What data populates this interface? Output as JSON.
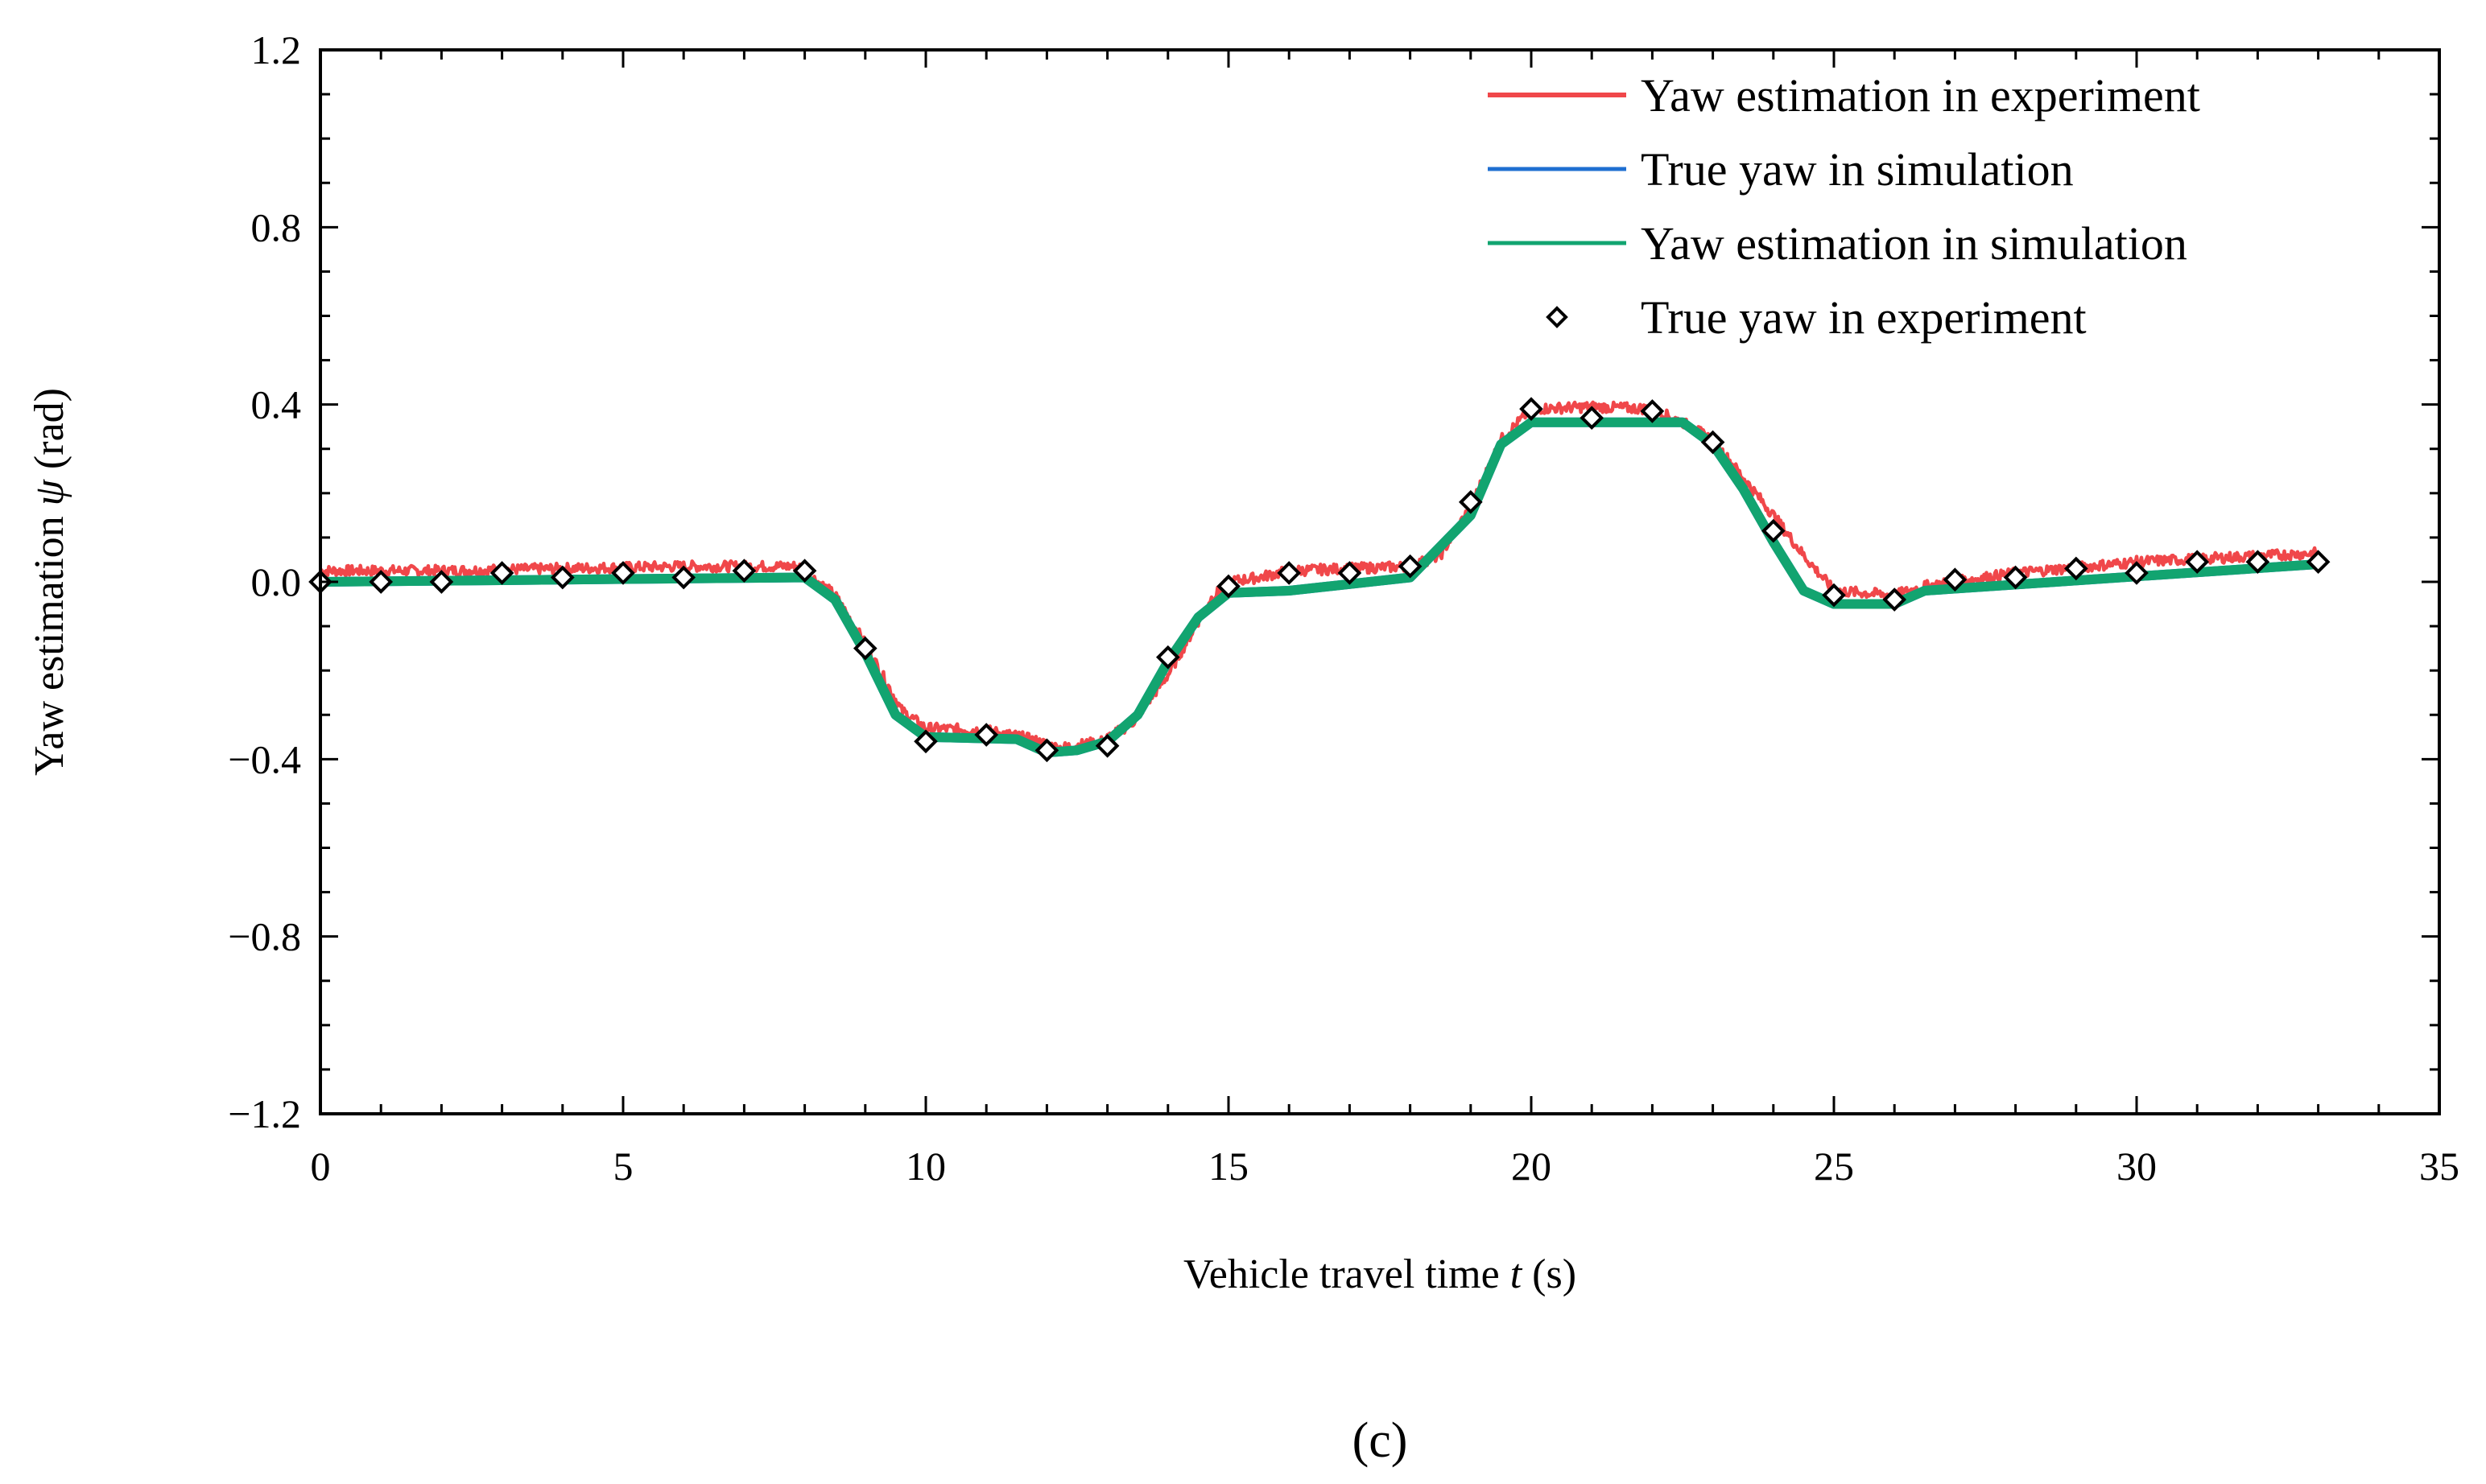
{
  "chart_data": {
    "type": "line",
    "xlabel": {
      "text": "Vehicle travel time ",
      "var": "t",
      "unit": " (s)"
    },
    "ylabel": {
      "text": "Yaw estimation ",
      "var": "ψ",
      "unit": " (rad)"
    },
    "xlim": [
      0,
      35
    ],
    "ylim": [
      -1.2,
      1.2
    ],
    "xticks": [
      0,
      5,
      10,
      15,
      20,
      25,
      30,
      35
    ],
    "xtick_labels": [
      "0",
      "5",
      "10",
      "15",
      "20",
      "25",
      "30",
      "35"
    ],
    "yticks": [
      -1.2,
      -0.8,
      -0.4,
      0.0,
      0.4,
      0.8,
      1.2
    ],
    "ytick_labels": [
      "−1.2",
      "−0.8",
      "−0.4",
      "0.0",
      "0.4",
      "0.8",
      "1.2"
    ],
    "grid": false,
    "legend_position": "top-right",
    "panel_label": "(c)",
    "series": [
      {
        "name": "Yaw estimation in experiment",
        "color": "#f0474a",
        "style": "noisy-line",
        "x": [
          0,
          2,
          4,
          6,
          7.9,
          8.5,
          9,
          9.6,
          10,
          11,
          11.6,
          12.2,
          12.9,
          13.4,
          14,
          14.7,
          15,
          15.5,
          16,
          17,
          18,
          18.5,
          19,
          19.5,
          20,
          21,
          22,
          22.5,
          23,
          24,
          24.5,
          25,
          26,
          26.5,
          27,
          28,
          30,
          33
        ],
        "y": [
          0.025,
          0.025,
          0.03,
          0.035,
          0.035,
          -0.03,
          -0.14,
          -0.29,
          -0.33,
          -0.335,
          -0.35,
          -0.375,
          -0.36,
          -0.32,
          -0.21,
          -0.04,
          0.0,
          0.01,
          0.025,
          0.03,
          0.035,
          0.06,
          0.17,
          0.32,
          0.39,
          0.395,
          0.39,
          0.36,
          0.32,
          0.15,
          0.06,
          -0.02,
          -0.03,
          -0.01,
          0.0,
          0.02,
          0.045,
          0.065
        ]
      },
      {
        "name": "True yaw in simulation",
        "color": "#1f6fd1",
        "style": "line",
        "x": [
          0,
          8,
          8.5,
          9,
          9.5,
          10,
          11.5,
          12,
          12.5,
          13,
          13.5,
          14,
          14.5,
          15,
          16,
          18,
          19,
          19.5,
          20,
          22.5,
          23,
          23.5,
          24,
          24.5,
          25,
          26,
          26.5,
          33
        ],
        "y": [
          0,
          0.01,
          -0.04,
          -0.16,
          -0.3,
          -0.35,
          -0.355,
          -0.385,
          -0.38,
          -0.36,
          -0.3,
          -0.18,
          -0.08,
          -0.025,
          -0.02,
          0.01,
          0.15,
          0.31,
          0.36,
          0.36,
          0.31,
          0.21,
          0.09,
          -0.02,
          -0.05,
          -0.05,
          -0.02,
          0.04
        ]
      },
      {
        "name": "Yaw estimation in simulation",
        "color": "#12a470",
        "style": "line",
        "x": [
          0,
          8,
          8.5,
          9,
          9.5,
          10,
          11.5,
          12,
          12.5,
          13,
          13.5,
          14,
          14.5,
          15,
          16,
          18,
          19,
          19.5,
          20,
          22.5,
          23,
          23.5,
          24,
          24.5,
          25,
          26,
          26.5,
          33
        ],
        "y": [
          0,
          0.01,
          -0.04,
          -0.16,
          -0.3,
          -0.35,
          -0.355,
          -0.385,
          -0.38,
          -0.36,
          -0.3,
          -0.18,
          -0.08,
          -0.025,
          -0.02,
          0.01,
          0.15,
          0.31,
          0.36,
          0.36,
          0.31,
          0.21,
          0.09,
          -0.02,
          -0.05,
          -0.05,
          -0.02,
          0.04
        ]
      },
      {
        "name": "True yaw in experiment",
        "color": "#000000",
        "style": "diamond-markers",
        "x": [
          0,
          1,
          2,
          3,
          4,
          5,
          6,
          7,
          8,
          9,
          10,
          11,
          12,
          13,
          14,
          15,
          16,
          17,
          18,
          19,
          20,
          21,
          22,
          23,
          24,
          25,
          26,
          27,
          28,
          29,
          30,
          31,
          32,
          33
        ],
        "y": [
          0.0,
          0.0,
          0.0,
          0.02,
          0.01,
          0.02,
          0.01,
          0.025,
          0.025,
          -0.15,
          -0.36,
          -0.345,
          -0.38,
          -0.37,
          -0.17,
          -0.01,
          0.02,
          0.02,
          0.035,
          0.18,
          0.39,
          0.37,
          0.385,
          0.315,
          0.115,
          -0.03,
          -0.04,
          0.005,
          0.01,
          0.03,
          0.02,
          0.045,
          0.045,
          0.045
        ]
      }
    ]
  }
}
